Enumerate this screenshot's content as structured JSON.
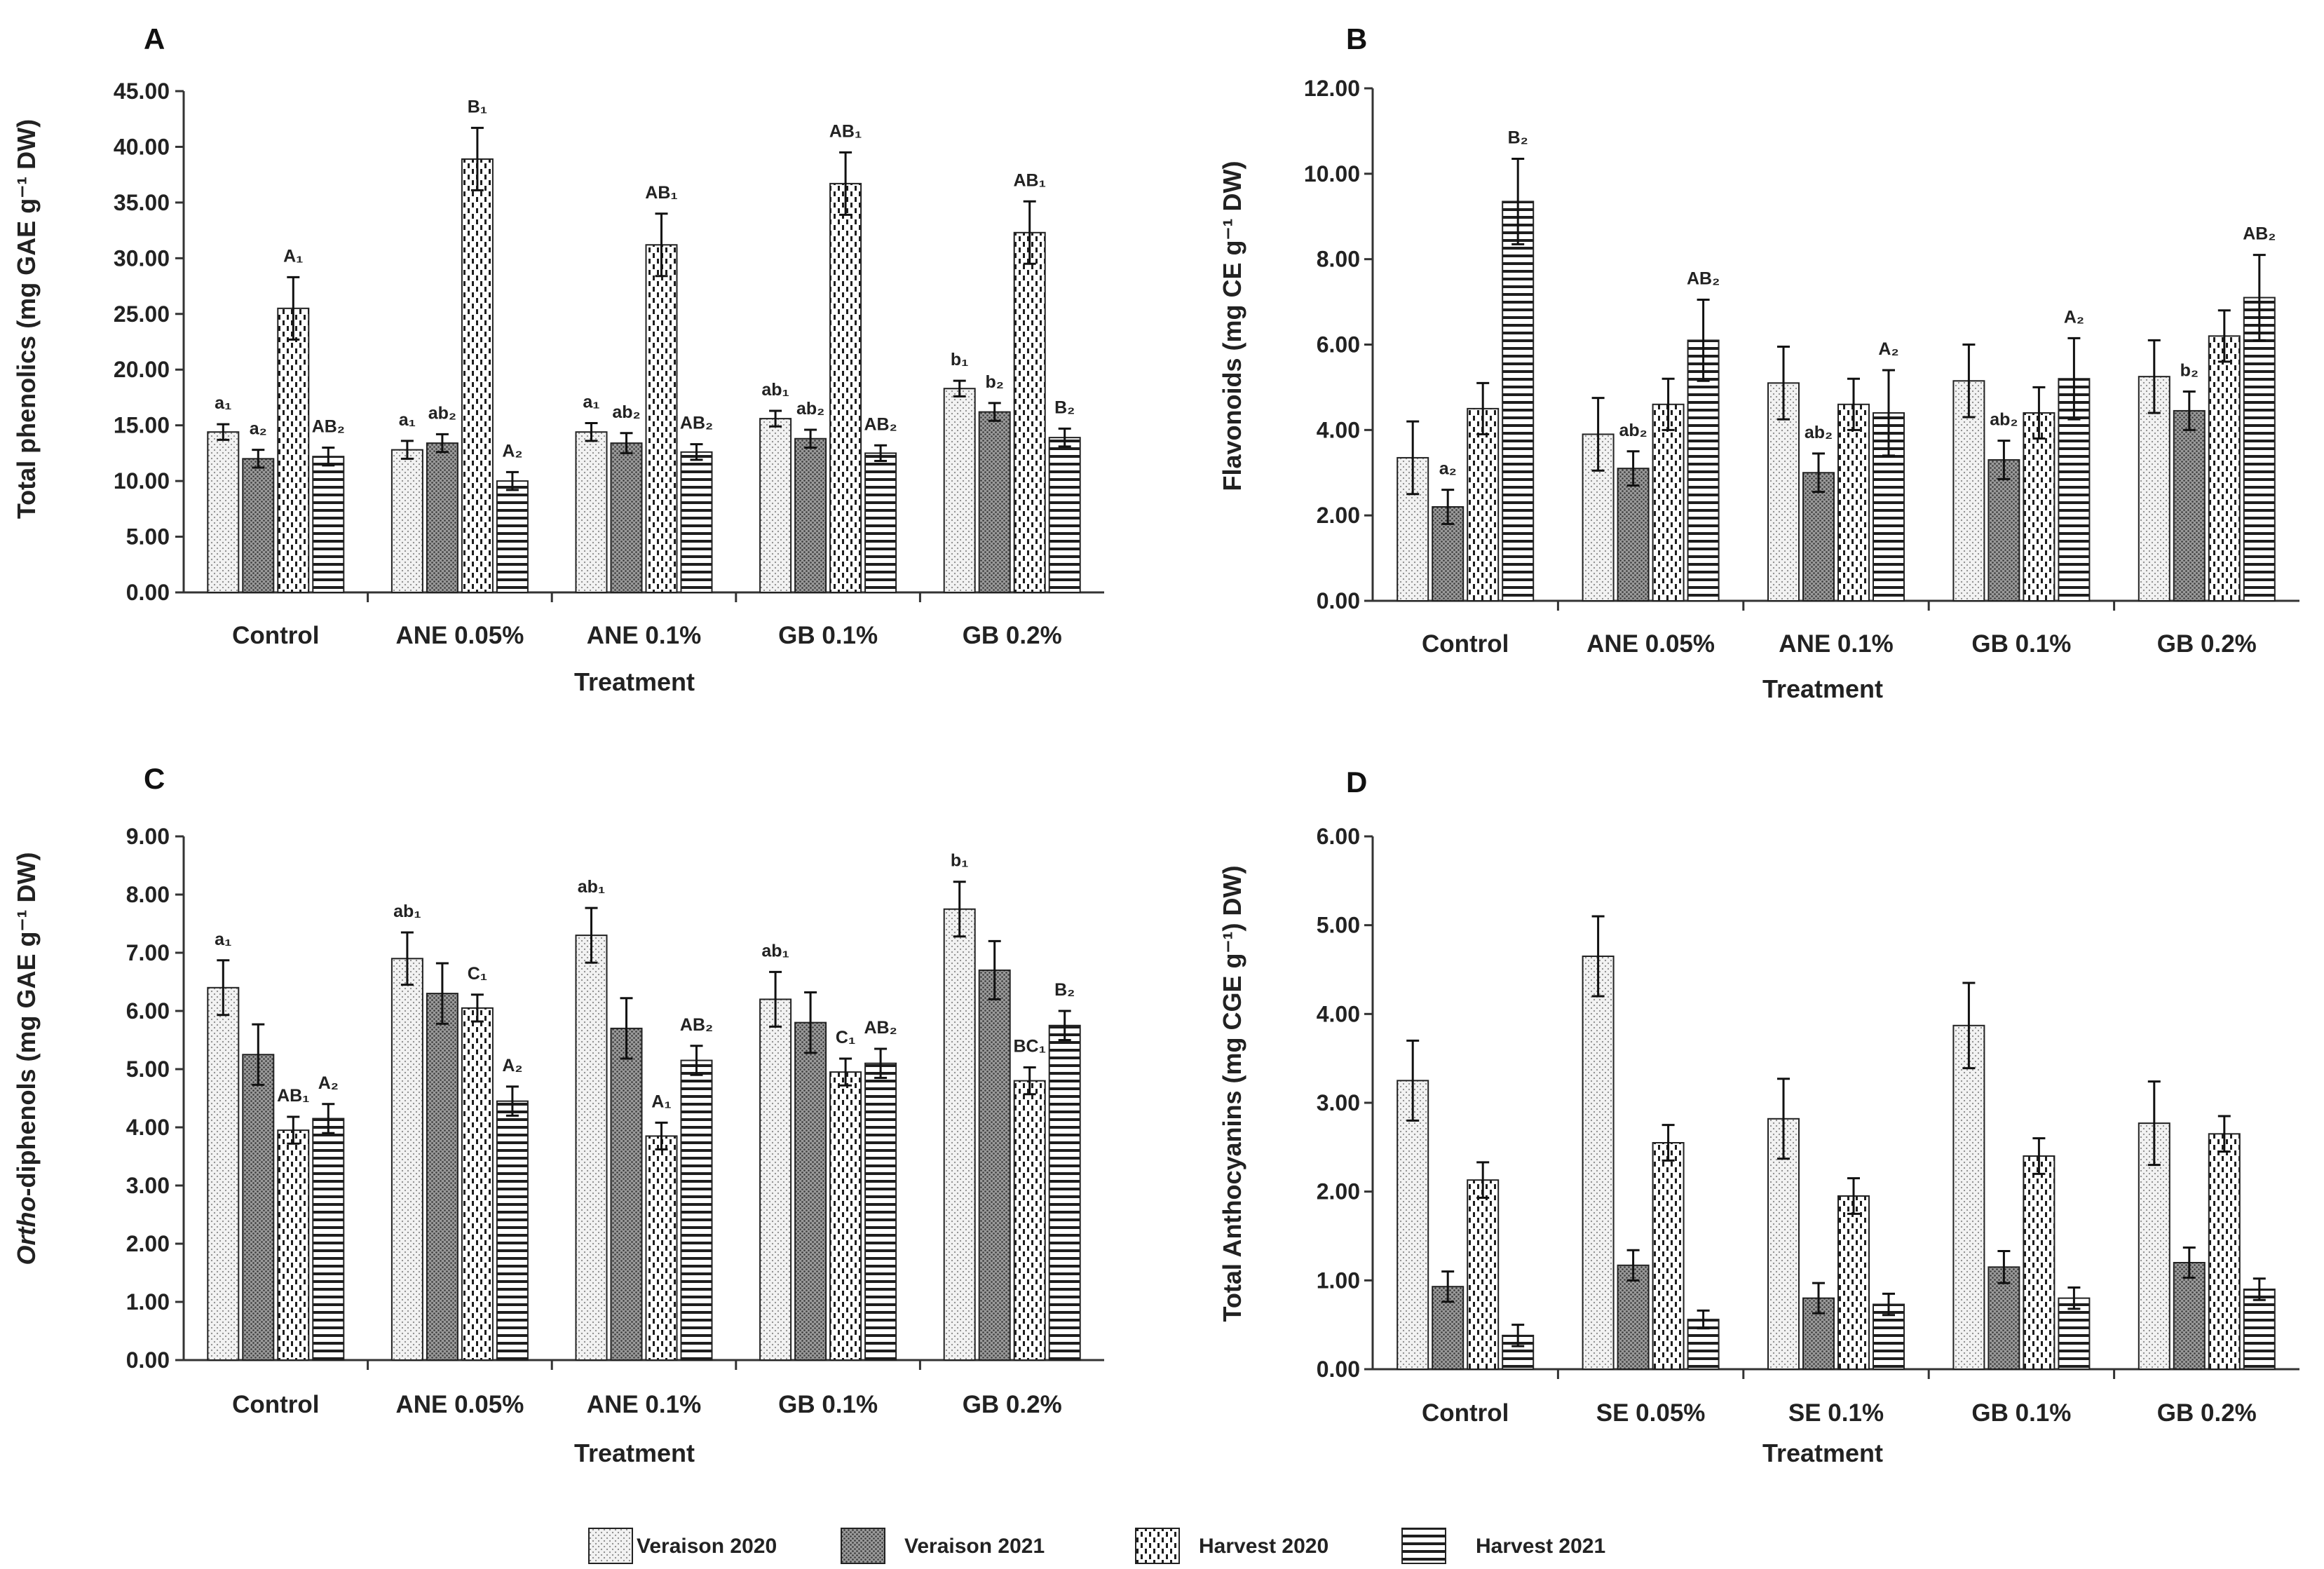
{
  "legend": {
    "entries": [
      "Veraison 2020",
      "Veraison 2021",
      "Harvest 2020",
      "Harvest 2021"
    ]
  },
  "patterns": {
    "Veraison 2020": "dots-light",
    "Veraison 2021": "dots-dark",
    "Harvest 2020": "dashes-vertical",
    "Harvest 2021": "lines-horizontal"
  },
  "colors": {
    "axis": "#333333",
    "bar_edge": "#222222",
    "background": "#ffffff"
  },
  "chart_data": [
    {
      "panel": "A",
      "type": "bar",
      "xlabel": "Treatment",
      "ylabel": "Total phenolics (mg GAE g⁻¹ DW)",
      "ylim": [
        0,
        45
      ],
      "yticks": [
        "0.00",
        "5.00",
        "10.00",
        "15.00",
        "20.00",
        "25.00",
        "30.00",
        "35.00",
        "40.00",
        "45.00"
      ],
      "categories": [
        "Control",
        "ANE 0.05%",
        "ANE 0.1%",
        "GB 0.1%",
        "GB 0.2%"
      ],
      "series": [
        {
          "name": "Veraison 2020",
          "values": [
            14.4,
            12.8,
            14.4,
            15.6,
            18.3
          ],
          "errors": [
            0.7,
            0.8,
            0.8,
            0.7,
            0.7
          ],
          "labels": [
            "a₁",
            "a₁",
            "a₁",
            "ab₁",
            "b₁"
          ]
        },
        {
          "name": "Veraison 2021",
          "values": [
            12.0,
            13.4,
            13.4,
            13.8,
            16.2
          ],
          "errors": [
            0.8,
            0.8,
            0.9,
            0.8,
            0.8
          ],
          "labels": [
            "a₂",
            "ab₂",
            "ab₂",
            "ab₂",
            "b₂"
          ]
        },
        {
          "name": "Harvest 2020",
          "values": [
            25.5,
            38.9,
            31.2,
            36.7,
            32.3
          ],
          "errors": [
            2.8,
            2.8,
            2.8,
            2.8,
            2.8
          ],
          "labels": [
            "A₁",
            "B₁",
            "AB₁",
            "AB₁",
            "AB₁"
          ]
        },
        {
          "name": "Harvest 2021",
          "values": [
            12.2,
            10.0,
            12.6,
            12.5,
            13.9
          ],
          "errors": [
            0.8,
            0.8,
            0.7,
            0.7,
            0.8
          ],
          "labels": [
            "AB₂",
            "A₂",
            "AB₂",
            "AB₂",
            "B₂"
          ]
        }
      ]
    },
    {
      "panel": "B",
      "type": "bar",
      "xlabel": "Treatment",
      "ylabel": "Flavonoids (mg CE g⁻¹ DW)",
      "ylim": [
        0,
        12
      ],
      "yticks": [
        "0.00",
        "2.00",
        "4.00",
        "6.00",
        "8.00",
        "10.00",
        "12.00"
      ],
      "categories": [
        "Control",
        "ANE 0.05%",
        "ANE 0.1%",
        "GB 0.1%",
        "GB 0.2%"
      ],
      "series": [
        {
          "name": "Veraison 2020",
          "values": [
            3.35,
            3.9,
            5.1,
            5.15,
            5.25
          ],
          "errors": [
            0.85,
            0.85,
            0.85,
            0.85,
            0.85
          ],
          "labels": [
            "",
            "",
            "",
            "",
            ""
          ]
        },
        {
          "name": "Veraison 2021",
          "values": [
            2.2,
            3.1,
            3.0,
            3.3,
            4.45
          ],
          "errors": [
            0.4,
            0.4,
            0.45,
            0.45,
            0.45
          ],
          "labels": [
            "a₂",
            "ab₂",
            "ab₂",
            "ab₂",
            "b₂"
          ]
        },
        {
          "name": "Harvest 2020",
          "values": [
            4.5,
            4.6,
            4.6,
            4.4,
            6.2
          ],
          "errors": [
            0.6,
            0.6,
            0.6,
            0.6,
            0.6
          ],
          "labels": [
            "",
            "",
            "",
            "",
            ""
          ]
        },
        {
          "name": "Harvest 2021",
          "values": [
            9.35,
            6.1,
            4.4,
            5.2,
            7.1
          ],
          "errors": [
            1.0,
            0.95,
            1.0,
            0.95,
            1.0
          ],
          "labels": [
            "B₂",
            "AB₂",
            "A₂",
            "A₂",
            "AB₂"
          ]
        }
      ]
    },
    {
      "panel": "C",
      "type": "bar",
      "xlabel": "Treatment",
      "ylabel_italic": "Ortho",
      "ylabel_rest": "-diphenols (mg GAE g⁻¹ DW)",
      "ylim": [
        0,
        9
      ],
      "yticks": [
        "0.00",
        "1.00",
        "2.00",
        "3.00",
        "4.00",
        "5.00",
        "6.00",
        "7.00",
        "8.00",
        "9.00"
      ],
      "categories": [
        "Control",
        "ANE 0.05%",
        "ANE 0.1%",
        "GB 0.1%",
        "GB 0.2%"
      ],
      "series": [
        {
          "name": "Veraison 2020",
          "values": [
            6.4,
            6.9,
            7.3,
            6.2,
            7.75
          ],
          "errors": [
            0.47,
            0.45,
            0.47,
            0.47,
            0.47
          ],
          "labels": [
            "a₁",
            "ab₁",
            "ab₁",
            "ab₁",
            "b₁"
          ]
        },
        {
          "name": "Veraison 2021",
          "values": [
            5.25,
            6.3,
            5.7,
            5.8,
            6.7
          ],
          "errors": [
            0.52,
            0.52,
            0.52,
            0.52,
            0.5
          ],
          "labels": [
            "",
            "",
            "",
            "",
            ""
          ]
        },
        {
          "name": "Harvest 2020",
          "values": [
            3.95,
            6.05,
            3.85,
            4.95,
            4.8
          ],
          "errors": [
            0.23,
            0.23,
            0.23,
            0.23,
            0.23
          ],
          "labels": [
            "AB₁",
            "C₁",
            "A₁",
            "C₁",
            "BC₁"
          ]
        },
        {
          "name": "Harvest 2021",
          "values": [
            4.15,
            4.45,
            5.15,
            5.1,
            5.75
          ],
          "errors": [
            0.25,
            0.25,
            0.25,
            0.25,
            0.25
          ],
          "labels": [
            "A₂",
            "A₂",
            "AB₂",
            "AB₂",
            "B₂"
          ]
        }
      ]
    },
    {
      "panel": "D",
      "type": "bar",
      "xlabel": "Treatment",
      "ylabel": "Total Anthocyanins (mg CGE g⁻¹) DW)",
      "ylim": [
        0,
        6
      ],
      "yticks": [
        "0.00",
        "1.00",
        "2.00",
        "3.00",
        "4.00",
        "5.00",
        "6.00"
      ],
      "categories": [
        "Control",
        "SE 0.05%",
        "SE 0.1%",
        "GB 0.1%",
        "GB 0.2%"
      ],
      "series": [
        {
          "name": "Veraison 2020",
          "values": [
            3.25,
            4.65,
            2.82,
            3.87,
            2.77
          ],
          "errors": [
            0.45,
            0.45,
            0.45,
            0.48,
            0.47
          ],
          "labels": [
            "",
            "",
            "",
            "",
            ""
          ]
        },
        {
          "name": "Veraison 2021",
          "values": [
            0.93,
            1.17,
            0.8,
            1.15,
            1.2
          ],
          "errors": [
            0.17,
            0.17,
            0.17,
            0.18,
            0.17
          ],
          "labels": [
            "",
            "",
            "",
            "",
            ""
          ]
        },
        {
          "name": "Harvest 2020",
          "values": [
            2.13,
            2.55,
            1.95,
            2.4,
            2.65
          ],
          "errors": [
            0.2,
            0.2,
            0.2,
            0.2,
            0.2
          ],
          "labels": [
            "",
            "",
            "",
            "",
            ""
          ]
        },
        {
          "name": "Harvest 2021",
          "values": [
            0.38,
            0.56,
            0.73,
            0.8,
            0.9
          ],
          "errors": [
            0.12,
            0.1,
            0.12,
            0.12,
            0.12
          ],
          "labels": [
            "",
            "",
            "",
            "",
            ""
          ]
        }
      ]
    }
  ]
}
